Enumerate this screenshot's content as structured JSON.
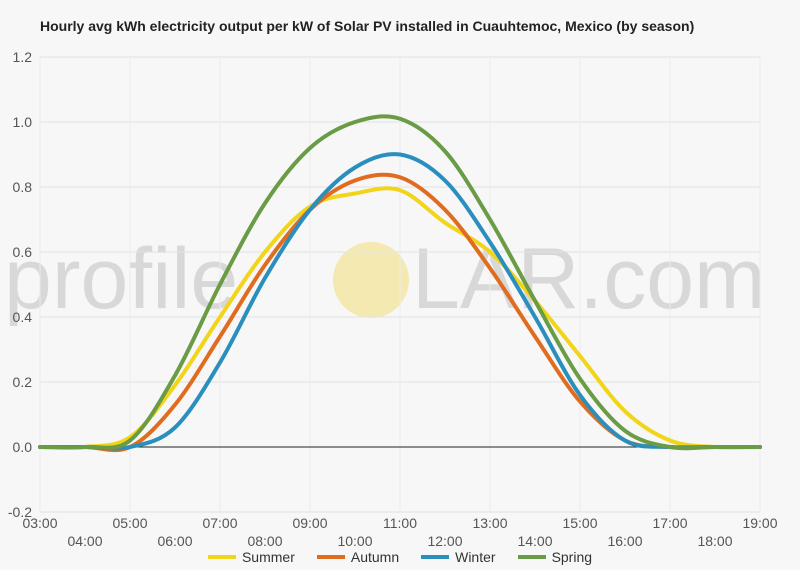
{
  "chart_data": {
    "type": "line",
    "title": "Hourly avg kWh electricity output per kW of Solar PV installed in Cuauhtemoc, Mexico (by season)",
    "watermark": {
      "text_left": "profile",
      "text_right": "LAR.com",
      "sun_color": "#f5e6a6"
    },
    "ylim": [
      -0.2,
      1.2
    ],
    "yticks": [
      "-0.2",
      "0.0",
      "0.2",
      "0.4",
      "0.6",
      "0.8",
      "1.0",
      "1.2"
    ],
    "xlim": [
      3,
      19
    ],
    "xticks_top": [
      "03:00",
      "05:00",
      "07:00",
      "09:00",
      "11:00",
      "13:00",
      "15:00",
      "17:00",
      "19:00"
    ],
    "xticks_bottom": [
      "04:00",
      "06:00",
      "08:00",
      "10:00",
      "12:00",
      "14:00",
      "16:00",
      "18:00"
    ],
    "x": [
      3,
      4,
      5,
      6,
      7,
      8,
      9,
      10,
      11,
      12,
      13,
      14,
      15,
      16,
      17,
      18,
      19
    ],
    "series": [
      {
        "name": "Summer",
        "color": "#f2d41a",
        "values": [
          0,
          0,
          0.03,
          0.19,
          0.4,
          0.6,
          0.74,
          0.78,
          0.79,
          0.69,
          0.6,
          0.45,
          0.28,
          0.11,
          0.02,
          0,
          0
        ]
      },
      {
        "name": "Autumn",
        "color": "#e06c1f",
        "values": [
          0,
          0,
          0,
          0.13,
          0.34,
          0.56,
          0.73,
          0.82,
          0.83,
          0.73,
          0.55,
          0.34,
          0.14,
          0.02,
          0,
          0,
          0
        ]
      },
      {
        "name": "Winter",
        "color": "#2a8fbd",
        "values": [
          0,
          0,
          0,
          0.06,
          0.26,
          0.52,
          0.73,
          0.86,
          0.9,
          0.82,
          0.63,
          0.4,
          0.16,
          0.02,
          0,
          0,
          0
        ]
      },
      {
        "name": "Spring",
        "color": "#6a9b45",
        "values": [
          0,
          0,
          0.02,
          0.22,
          0.5,
          0.75,
          0.92,
          1.0,
          1.01,
          0.91,
          0.7,
          0.45,
          0.21,
          0.05,
          0,
          0,
          0
        ]
      }
    ]
  }
}
